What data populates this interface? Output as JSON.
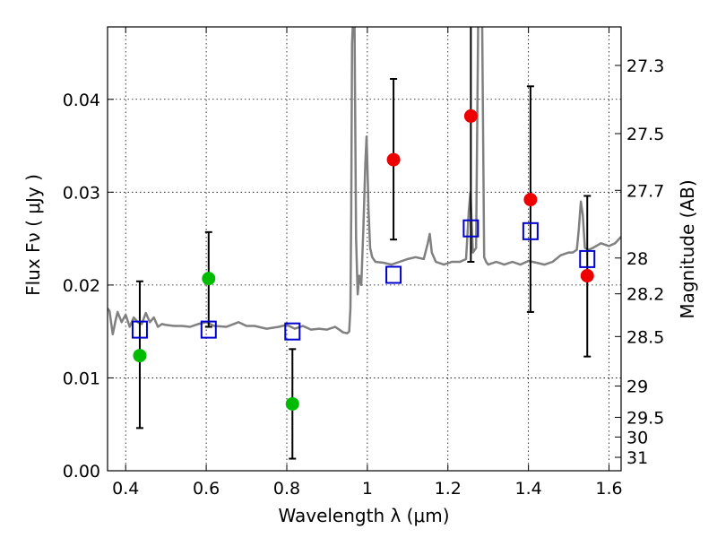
{
  "chart_data": {
    "type": "scatter",
    "xlabel": "Wavelength  λ (μm)",
    "ylabel": "Flux  Fν  ( μJy )",
    "y2label": "Magnitude (AB)",
    "xlim": [
      0.355,
      1.63
    ],
    "ylim": [
      0.0,
      0.0478
    ],
    "grid": true,
    "x_ticks": [
      0.4,
      0.6,
      0.8,
      1.0,
      1.2,
      1.4,
      1.6
    ],
    "x_tick_labels": [
      "0.4",
      "0.6",
      "0.8",
      "1",
      "1.2",
      "1.4",
      "1.6"
    ],
    "y_ticks": [
      0.0,
      0.01,
      0.02,
      0.03,
      0.04
    ],
    "y_tick_labels": [
      "0.00",
      "0.01",
      "0.02",
      "0.03",
      "0.04"
    ],
    "y2_ticks": [
      27.3,
      27.5,
      27.7,
      28,
      28.2,
      28.5,
      29,
      29.5,
      30,
      31
    ],
    "colors": {
      "model_spectrum": "#808080",
      "model_photometry": "#0000cc",
      "detections_green": "#00bb00",
      "detections_red": "#ee0000",
      "errorbars": "#000000"
    },
    "observed_green": [
      {
        "x": 0.435,
        "y": 0.0124,
        "ylo": 0.0046,
        "yhi": 0.0204
      },
      {
        "x": 0.606,
        "y": 0.0207,
        "ylo": 0.0155,
        "yhi": 0.0257
      },
      {
        "x": 0.814,
        "y": 0.0072,
        "ylo": 0.0013,
        "yhi": 0.0131
      }
    ],
    "observed_red": [
      {
        "x": 1.065,
        "y": 0.0335,
        "ylo": 0.0249,
        "yhi": 0.0422
      },
      {
        "x": 1.257,
        "y": 0.0382,
        "ylo": 0.0225,
        "yhi": 0.048
      },
      {
        "x": 1.405,
        "y": 0.0292,
        "ylo": 0.0171,
        "yhi": 0.0414
      },
      {
        "x": 1.546,
        "y": 0.021,
        "ylo": 0.0123,
        "yhi": 0.0296
      }
    ],
    "model_photometry": [
      {
        "x": 0.435,
        "y": 0.0152
      },
      {
        "x": 0.606,
        "y": 0.0152
      },
      {
        "x": 0.814,
        "y": 0.015
      },
      {
        "x": 1.065,
        "y": 0.0211
      },
      {
        "x": 1.257,
        "y": 0.0261
      },
      {
        "x": 1.405,
        "y": 0.0258
      },
      {
        "x": 1.546,
        "y": 0.0228
      }
    ],
    "model_spectrum": {
      "x": [
        0.355,
        0.36,
        0.368,
        0.375,
        0.38,
        0.39,
        0.4,
        0.41,
        0.42,
        0.43,
        0.44,
        0.45,
        0.46,
        0.47,
        0.48,
        0.49,
        0.5,
        0.52,
        0.54,
        0.56,
        0.58,
        0.6,
        0.62,
        0.65,
        0.68,
        0.7,
        0.72,
        0.75,
        0.78,
        0.8,
        0.82,
        0.84,
        0.86,
        0.88,
        0.9,
        0.92,
        0.94,
        0.95,
        0.955,
        0.958,
        0.96,
        0.962,
        0.965,
        0.968,
        0.972,
        0.976,
        0.98,
        0.985,
        0.99,
        0.995,
        0.998,
        1.0,
        1.003,
        1.007,
        1.012,
        1.02,
        1.04,
        1.06,
        1.08,
        1.1,
        1.12,
        1.14,
        1.15,
        1.155,
        1.16,
        1.17,
        1.19,
        1.21,
        1.23,
        1.245,
        1.252,
        1.256,
        1.262,
        1.27,
        1.275,
        1.28,
        1.285,
        1.29,
        1.295,
        1.3,
        1.32,
        1.34,
        1.36,
        1.38,
        1.4,
        1.42,
        1.44,
        1.46,
        1.48,
        1.5,
        1.51,
        1.52,
        1.525,
        1.53,
        1.535,
        1.54,
        1.55,
        1.56,
        1.58,
        1.6,
        1.615,
        1.63
      ],
      "y": [
        0.0175,
        0.0172,
        0.0147,
        0.0162,
        0.0171,
        0.016,
        0.0168,
        0.0155,
        0.0165,
        0.016,
        0.0158,
        0.017,
        0.016,
        0.0165,
        0.0155,
        0.0158,
        0.0157,
        0.0156,
        0.0156,
        0.0155,
        0.0158,
        0.016,
        0.0156,
        0.0155,
        0.016,
        0.0156,
        0.0156,
        0.0153,
        0.0155,
        0.0157,
        0.0153,
        0.0156,
        0.0152,
        0.0153,
        0.0152,
        0.0155,
        0.0149,
        0.0148,
        0.015,
        0.0175,
        0.028,
        0.046,
        0.049,
        0.049,
        0.025,
        0.019,
        0.021,
        0.02,
        0.026,
        0.033,
        0.036,
        0.033,
        0.028,
        0.024,
        0.023,
        0.0225,
        0.0224,
        0.0222,
        0.0225,
        0.0228,
        0.023,
        0.0228,
        0.0245,
        0.0255,
        0.0235,
        0.0225,
        0.0222,
        0.0225,
        0.0225,
        0.0228,
        0.028,
        0.03,
        0.0235,
        0.024,
        0.048,
        0.049,
        0.048,
        0.023,
        0.0225,
        0.0222,
        0.0225,
        0.0222,
        0.0225,
        0.0222,
        0.0226,
        0.0224,
        0.0222,
        0.0225,
        0.0232,
        0.0235,
        0.0235,
        0.0238,
        0.026,
        0.029,
        0.0275,
        0.024,
        0.0238,
        0.024,
        0.0245,
        0.0242,
        0.0245,
        0.0252
      ]
    }
  }
}
